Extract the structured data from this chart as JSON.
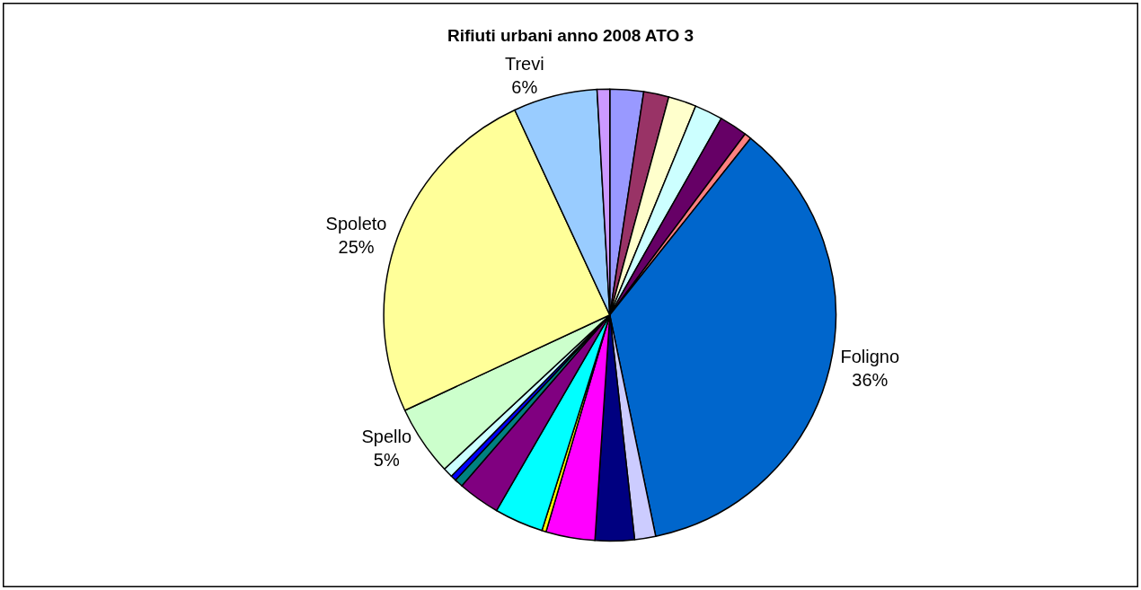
{
  "chart_data": {
    "type": "pie",
    "title": "Rifiuti urbani anno 2008 ATO 3",
    "categories": [
      null,
      null,
      null,
      null,
      null,
      null,
      "Foligno",
      null,
      null,
      null,
      null,
      null,
      null,
      null,
      null,
      null,
      "Spello",
      "Spoleto",
      "Trevi",
      null
    ],
    "values": [
      2.4,
      1.8,
      2,
      2,
      2,
      0.5,
      36,
      1.5,
      2.8,
      3.5,
      0.3,
      3.5,
      3.0,
      0.6,
      0.4,
      0.7,
      5,
      25,
      6,
      0.9
    ],
    "value_labels": [
      null,
      null,
      null,
      null,
      null,
      null,
      "36%",
      null,
      null,
      null,
      null,
      null,
      null,
      null,
      null,
      null,
      "5%",
      "25%",
      "6%",
      null
    ],
    "colors": [
      "#9999ff",
      "#993366",
      "#ffffcc",
      "#ccffff",
      "#660066",
      "#ff8080",
      "#0066cc",
      "#ccccff",
      "#000080",
      "#ff00ff",
      "#ffff00",
      "#00ffff",
      "#800080",
      "#008080",
      "#0000ff",
      "#ccffff",
      "#ccffcc",
      "#ffff99",
      "#99ccff",
      "#cc99ff"
    ],
    "legend": false
  }
}
